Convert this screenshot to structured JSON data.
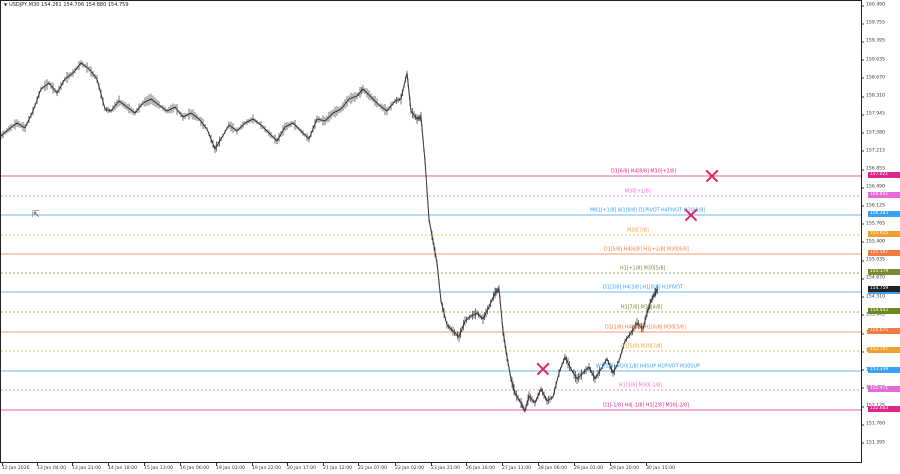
{
  "symbol": {
    "name": "USDJPY,M30",
    "ohlc": "154.261 154.706 154.880 154.759"
  },
  "price_axis": {
    "ticks": [
      "160.490",
      "159.755",
      "159.395",
      "159.035",
      "158.670",
      "158.310",
      "157.945",
      "157.580",
      "157.215",
      "156.855",
      "156.490",
      "156.125",
      "155.765",
      "155.400",
      "155.035",
      "154.670",
      "154.310",
      "153.945",
      "153.585",
      "153.220",
      "152.855",
      "152.490",
      "152.125",
      "151.760",
      "151.395"
    ]
  },
  "time_axis": {
    "labels": [
      "12 Jan 2026",
      "13 Jan 04:00",
      "13 Jan 21:00",
      "14 Jan 18:00",
      "15 Jan 13:00",
      "16 Jan 06:00",
      "19 Jan 03:00",
      "19 Jan 22:00",
      "20 Jan 17:00",
      "21 Jan 12:00",
      "22 Jan 07:00",
      "23 Jan 02:00",
      "23 Jan 21:00",
      "26 Jan 16:00",
      "27 Jan 11:00",
      "28 Jan 06:00",
      "29 Jan 01:00",
      "29 Jan 20:00",
      "30 Jan 15:00"
    ]
  },
  "levels": [
    {
      "label": "D1[6/8] H4[8/8] M30[+2/8]",
      "tag": "157.021",
      "color": "#e0248c",
      "dash": false
    },
    {
      "label": "M30[+1/8]",
      "tag": "156.651",
      "color": "#e86ad8",
      "dash": true
    },
    {
      "label": "MN1[+1/8] W1[8/8] D1PIVOT H4PIVOT M30[8/8]",
      "tag": "156.283",
      "color": "#3aa0f0",
      "dash": false
    },
    {
      "label": "M30[7/8]",
      "tag": "155.915",
      "color": "#f0a030",
      "dash": true
    },
    {
      "label": "D1[5/8] H4[6/8] H1[+2/8] M30[6/8]",
      "tag": "155.547",
      "color": "#f07a40",
      "dash": false
    },
    {
      "label": "H1[+1/8] M30[5/8]",
      "tag": "155.179",
      "color": "#7a8a30",
      "dash": true
    },
    {
      "label": "D1[3/8] H4[3/8] H1[8/8] H1PIVOT",
      "tag": "154.811",
      "color": "#3aa0f0",
      "dash": false
    },
    {
      "label": "H1[7/8] M30[4/8]",
      "tag": "154.443",
      "color": "#6a8a20",
      "dash": true
    },
    {
      "label": "D1[1/8] H4[2/8] H1[6/8] M30[3/8]",
      "tag": "154.075",
      "color": "#f07a40",
      "dash": false
    },
    {
      "label": "H1[5/8] M30[2/8]",
      "tag": "153.707",
      "color": "#f0a030",
      "dash": true
    },
    {
      "label": "W1[5/8] M30[1/8] H4SUP H1PIVOT M30SUP",
      "tag": "153.339",
      "color": "#3aa0f0",
      "dash": false
    },
    {
      "label": "H1[3/8] M30[-1/8]",
      "tag": "152.971",
      "color": "#e86ad8",
      "dash": true
    },
    {
      "label": "D1[-1/8] H4[-1/8] H1[2/8] M30[-2/8]",
      "tag": "152.603",
      "color": "#e0248c",
      "dash": false
    }
  ],
  "current_price": {
    "tag": "154.759",
    "color": "#222222"
  },
  "markers": [
    "x-marker",
    "x-marker",
    "x-marker"
  ],
  "colors": {
    "candles": "#333333",
    "background": "#ffffff"
  }
}
